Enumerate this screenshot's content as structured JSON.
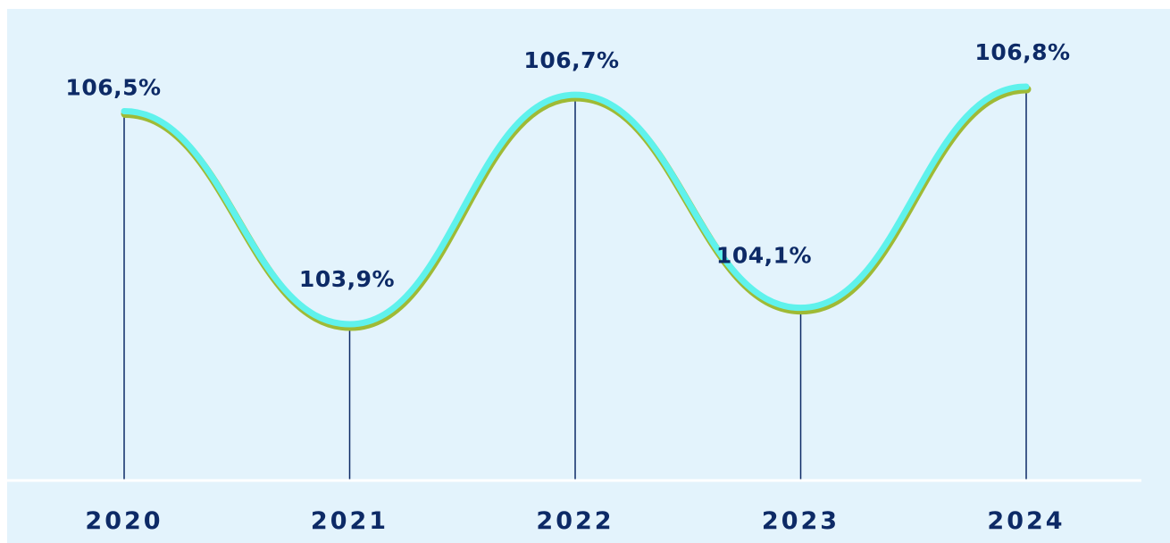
{
  "chart_data": {
    "type": "line",
    "categories": [
      "2020",
      "2021",
      "2022",
      "2023",
      "2024"
    ],
    "values": [
      106.5,
      103.9,
      106.7,
      104.1,
      106.8
    ],
    "data_labels": [
      "106,5%",
      "103,9%",
      "106,7%",
      "104,1%",
      "106,8%"
    ],
    "title": "",
    "xlabel": "",
    "ylabel": "",
    "grid": false,
    "legend": "none",
    "colors": {
      "background": "#e3f3fc",
      "line": "#5ff2ec",
      "line_shadow": "#9fba35",
      "drop_lines": "#0d2a66",
      "axis": "#ffffff",
      "text": "#0d2a66"
    }
  }
}
